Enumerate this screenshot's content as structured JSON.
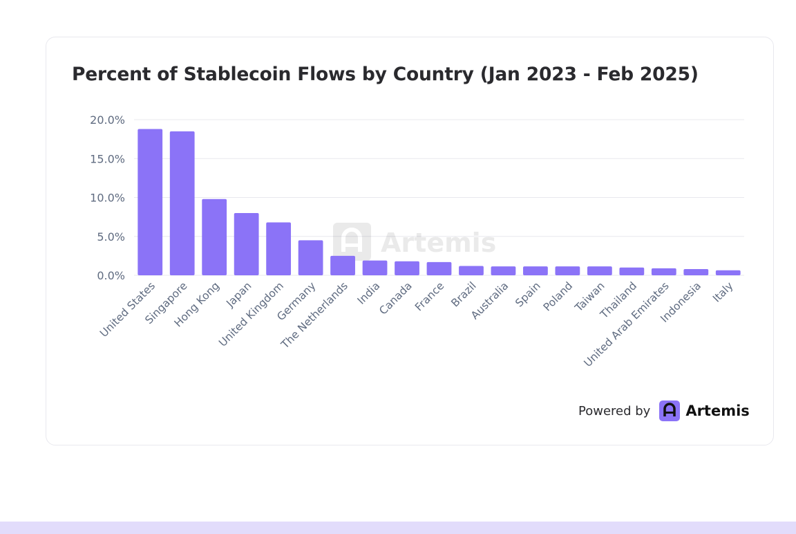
{
  "colors": {
    "bar": "#8b73f7",
    "grid": "#e8e8ee",
    "tick_text": "#5f6b80",
    "brand": "#8b73f7",
    "footer_band": "#e2dcfb"
  },
  "chart_data": {
    "type": "bar",
    "title": "Percent of Stablecoin Flows by Country (Jan 2023 - Feb 2025)",
    "xlabel": "",
    "ylabel": "",
    "ylim": [
      0,
      20
    ],
    "yticks": [
      0,
      5,
      10,
      15,
      20
    ],
    "ytick_labels": [
      "0.0%",
      "5.0%",
      "10.0%",
      "15.0%",
      "20.0%"
    ],
    "grid": true,
    "legend": "none",
    "categories": [
      "United States",
      "Singapore",
      "Hong Kong",
      "Japan",
      "United Kingdom",
      "Germany",
      "The Netherlands",
      "India",
      "Canada",
      "France",
      "Brazil",
      "Australia",
      "Spain",
      "Poland",
      "Taiwan",
      "Thailand",
      "United Arab Emirates",
      "Indonesia",
      "Italy"
    ],
    "values": [
      18.8,
      18.5,
      9.8,
      8.0,
      6.8,
      4.5,
      2.5,
      1.9,
      1.8,
      1.7,
      1.2,
      1.15,
      1.15,
      1.15,
      1.15,
      1.0,
      0.9,
      0.8,
      0.65
    ]
  },
  "watermark": {
    "text": "Artemis",
    "icon": "artemis-logo-icon"
  },
  "footer": {
    "powered_by": "Powered by",
    "brand_name": "Artemis",
    "brand_icon": "artemis-logo-icon"
  }
}
